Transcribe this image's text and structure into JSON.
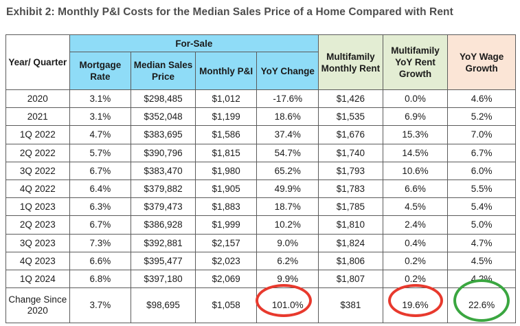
{
  "title": "Exhibit 2: Monthly P&I Costs for the Median Sales Price of a Home Compared with Rent",
  "headers": {
    "year_quarter": "Year/ Quarter",
    "for_sale_group": "For-Sale",
    "mortgage_rate": "Mortgage Rate",
    "median_sales_price": "Median Sales Price",
    "monthly_pi": "Monthly P&I",
    "yoy_change": "YoY Change",
    "mf_monthly_rent": "Multifamily Monthly Rent",
    "mf_yoy_rent_growth": "Multifamily YoY Rent Growth",
    "yoy_wage_growth": "YoY Wage Growth"
  },
  "rows": [
    [
      "2020",
      "3.1%",
      "$298,485",
      "$1,012",
      "-17.6%",
      "$1,426",
      "0.0%",
      "4.6%"
    ],
    [
      "2021",
      "3.1%",
      "$352,048",
      "$1,199",
      "18.6%",
      "$1,535",
      "6.9%",
      "5.2%"
    ],
    [
      "1Q 2022",
      "4.7%",
      "$383,695",
      "$1,586",
      "37.4%",
      "$1,676",
      "15.3%",
      "7.0%"
    ],
    [
      "2Q 2022",
      "5.7%",
      "$390,796",
      "$1,815",
      "54.7%",
      "$1,740",
      "14.5%",
      "6.7%"
    ],
    [
      "3Q 2022",
      "6.7%",
      "$383,470",
      "$1,980",
      "65.2%",
      "$1,793",
      "10.6%",
      "6.0%"
    ],
    [
      "4Q 2022",
      "6.4%",
      "$379,882",
      "$1,905",
      "49.9%",
      "$1,783",
      "6.6%",
      "5.5%"
    ],
    [
      "1Q 2023",
      "6.3%",
      "$379,473",
      "$1,883",
      "18.7%",
      "$1,785",
      "4.5%",
      "5.4%"
    ],
    [
      "2Q 2023",
      "6.7%",
      "$386,928",
      "$1,999",
      "10.2%",
      "$1,810",
      "2.4%",
      "5.0%"
    ],
    [
      "3Q 2023",
      "7.3%",
      "$392,881",
      "$2,157",
      "9.0%",
      "$1,824",
      "0.4%",
      "4.7%"
    ],
    [
      "4Q 2023",
      "6.6%",
      "$395,477",
      "$2,023",
      "6.2%",
      "$1,806",
      "0.2%",
      "4.5%"
    ],
    [
      "1Q 2024",
      "6.8%",
      "$397,180",
      "$2,069",
      "9.9%",
      "$1,807",
      "0.2%",
      "4.2%"
    ]
  ],
  "change_row": [
    "Change Since 2020",
    "3.7%",
    "$98,695",
    "$1,058",
    "101.0%",
    "$381",
    "19.6%",
    "22.6%"
  ],
  "colors": {
    "for_sale_header": "#8fdcf7",
    "multifamily_header": "#e3edd3",
    "wage_header": "#fbe5d6",
    "highlight_red": "#e8392d",
    "highlight_green": "#3aa640"
  }
}
